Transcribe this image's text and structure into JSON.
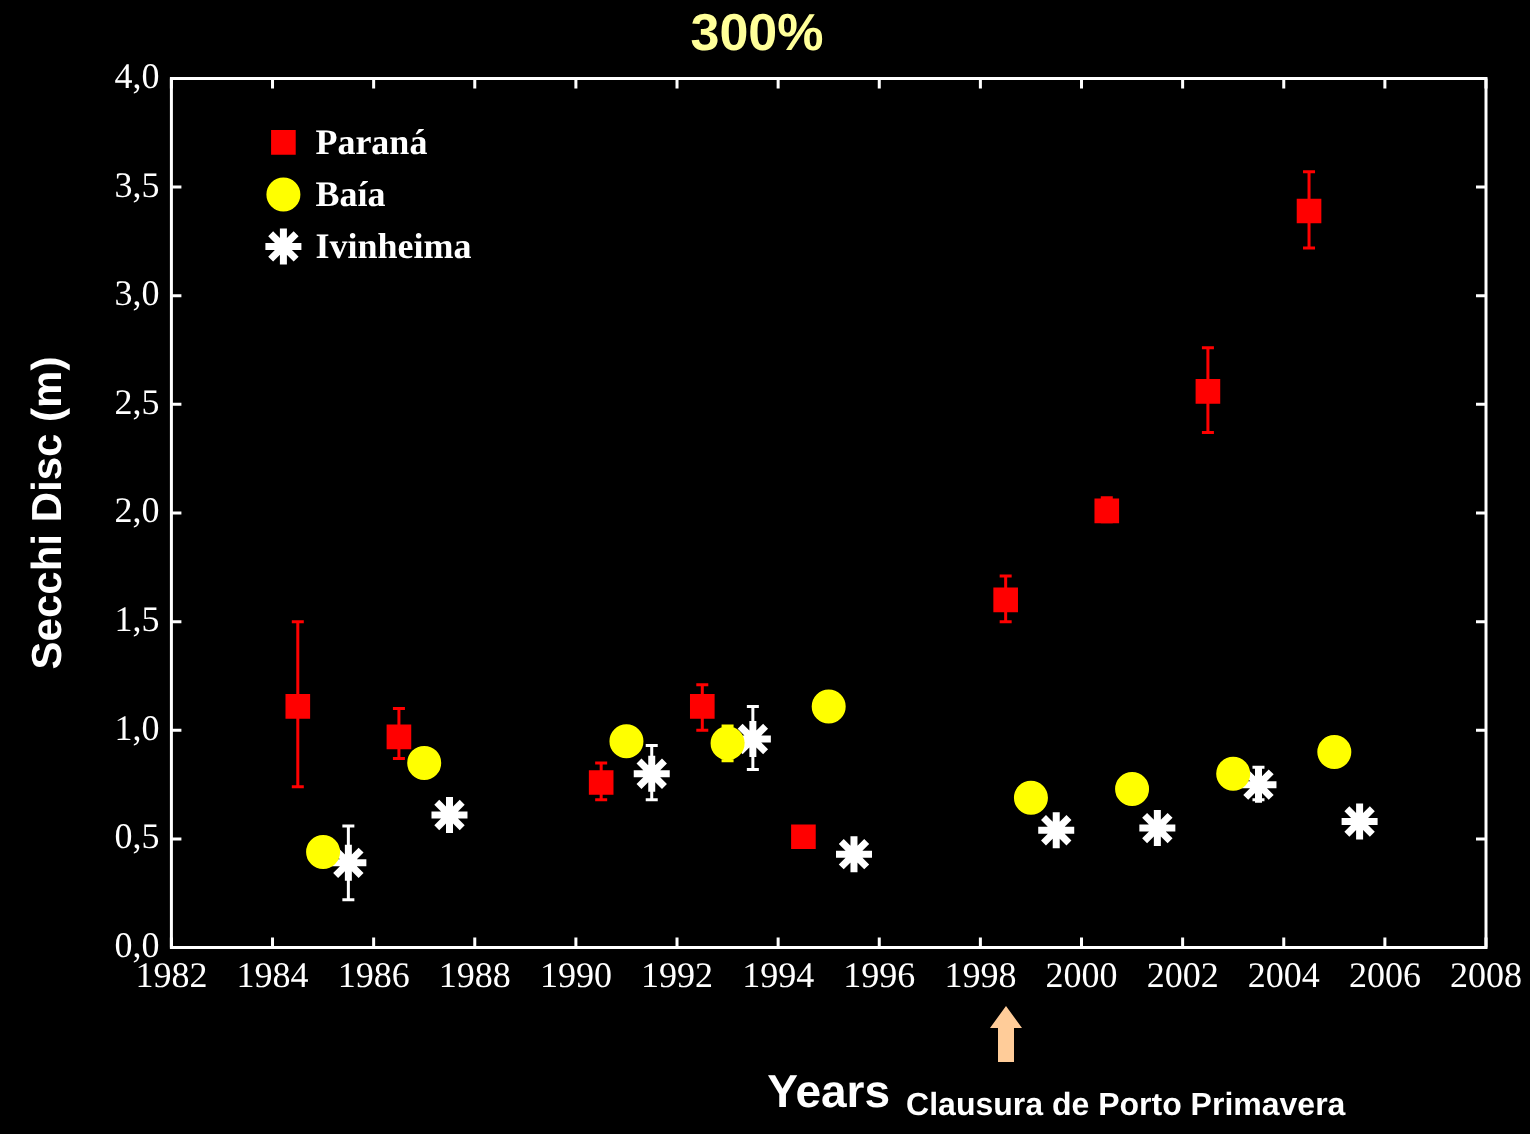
{
  "chart_data": {
    "type": "scatter",
    "title": "300%",
    "xlabel": "Years",
    "ylabel": "Secchi Disc (m)",
    "annotations": [
      "Clausura de Porto Primavera"
    ],
    "xlim": [
      1982,
      2008
    ],
    "xticks": [
      1982,
      1984,
      1986,
      1988,
      1990,
      1992,
      1994,
      1996,
      1998,
      2000,
      2002,
      2004,
      2006,
      2008
    ],
    "ylim": [
      0,
      4
    ],
    "yticks": [
      {
        "value": 0,
        "label": "0,0"
      },
      {
        "value": 0.5,
        "label": "0,5"
      },
      {
        "value": 1,
        "label": "1,0"
      },
      {
        "value": 1.5,
        "label": "1,5"
      },
      {
        "value": 2,
        "label": "2,0"
      },
      {
        "value": 2.5,
        "label": "2,5"
      },
      {
        "value": 3,
        "label": "3,0"
      },
      {
        "value": 3.5,
        "label": "3,5"
      },
      {
        "value": 4,
        "label": "4,0"
      }
    ],
    "grid": false,
    "legend": "top left",
    "series": [
      {
        "name": "Paraná",
        "color": "#ff0000",
        "marker": "square",
        "x": [
          1984.5,
          1986.5,
          1990.5,
          1992.5,
          1994.5,
          1998.5,
          2000.5,
          2002.5,
          2004.5
        ],
        "values": [
          1.11,
          0.97,
          0.76,
          1.11,
          0.51,
          1.6,
          2.01,
          2.56,
          3.39
        ],
        "errors": [
          [
            0.74,
            1.5
          ],
          [
            0.87,
            1.1
          ],
          [
            0.68,
            0.85
          ],
          [
            1.0,
            1.21
          ],
          null,
          [
            1.5,
            1.71
          ],
          [
            1.96,
            2.07
          ],
          [
            2.37,
            2.76
          ],
          [
            3.22,
            3.57
          ]
        ]
      },
      {
        "name": "Baía",
        "color": "#ffff00",
        "marker": "circle",
        "x": [
          1985,
          1987,
          1991,
          1993,
          1995,
          1999,
          2001,
          2003,
          2005
        ],
        "values": [
          0.44,
          0.85,
          0.95,
          0.94,
          1.11,
          0.69,
          0.73,
          0.8,
          0.9
        ],
        "errors": [
          null,
          null,
          null,
          [
            0.86,
            1.02
          ],
          null,
          null,
          null,
          null,
          null
        ]
      },
      {
        "name": "Ivinheima",
        "color": "#ffffff",
        "marker": "cross",
        "x": [
          1985.5,
          1987.5,
          1991.5,
          1993.5,
          1995.5,
          1999.5,
          2001.5,
          2003.5,
          2005.5
        ],
        "values": [
          0.39,
          0.61,
          0.8,
          0.96,
          0.43,
          0.54,
          0.55,
          0.75,
          0.58
        ],
        "errors": [
          [
            0.22,
            0.56
          ],
          null,
          [
            0.68,
            0.93
          ],
          [
            0.82,
            1.11
          ],
          null,
          null,
          null,
          [
            0.68,
            0.83
          ],
          null
        ]
      }
    ]
  }
}
